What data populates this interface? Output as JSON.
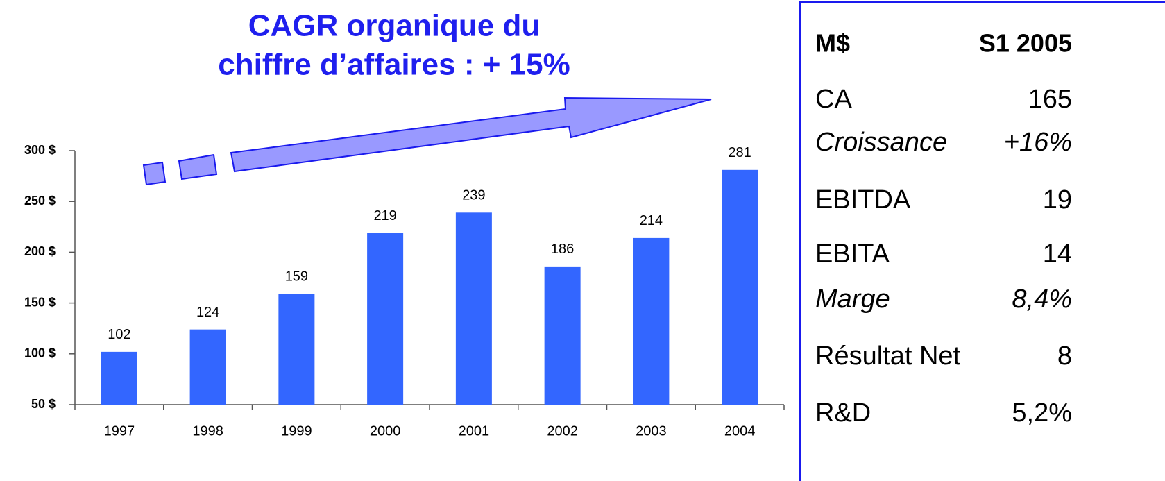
{
  "chart_data": {
    "type": "bar",
    "annotation": [
      "CAGR organique du",
      "chiffre d’affaires : + 15%"
    ],
    "categories": [
      "1997",
      "1998",
      "1999",
      "2000",
      "2001",
      "2002",
      "2003",
      "2004"
    ],
    "values": [
      102,
      124,
      159,
      219,
      239,
      186,
      214,
      281
    ],
    "color": "#3366ff",
    "ylim": [
      50,
      300
    ],
    "yticks": [
      {
        "value": 50,
        "label": "50 $"
      },
      {
        "value": 100,
        "label": "100 $"
      },
      {
        "value": 150,
        "label": "150 $"
      },
      {
        "value": 200,
        "label": "200 $"
      },
      {
        "value": 250,
        "label": "250 $"
      },
      {
        "value": 300,
        "label": "300 $"
      }
    ],
    "grid": false
  },
  "table": {
    "header": [
      "M$",
      "S1 2005"
    ],
    "rows": [
      [
        "CA",
        "165"
      ],
      [
        "Croissance",
        "+16%"
      ],
      [
        "EBITDA",
        "19"
      ],
      [
        "EBITA",
        "14"
      ],
      [
        "Marge",
        "8,4%"
      ],
      [
        "Résultat Net",
        "8"
      ],
      [
        "R&D",
        "5,2%"
      ]
    ]
  }
}
